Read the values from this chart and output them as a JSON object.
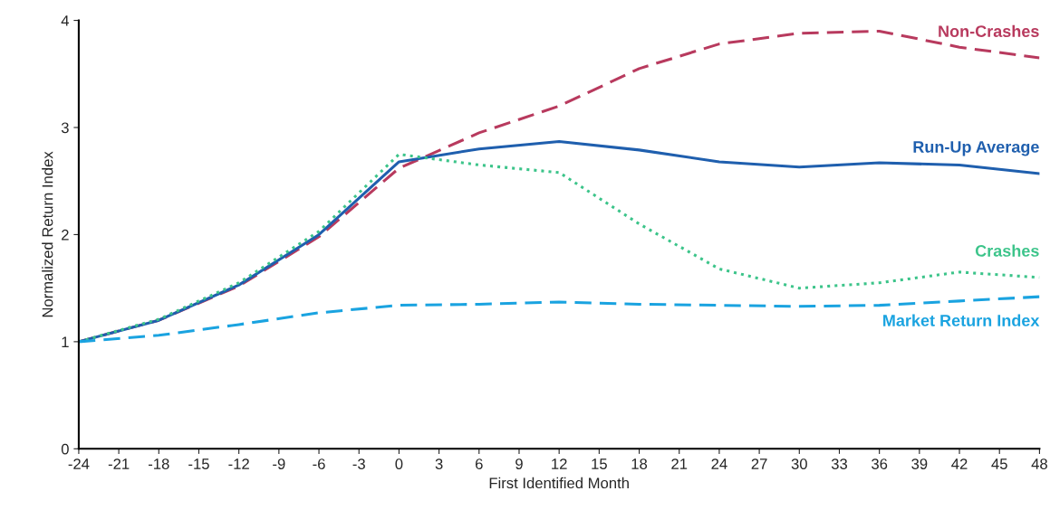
{
  "chart_data": {
    "type": "line",
    "xlabel": "First Identified Month",
    "ylabel": "Normalized Return Index",
    "x": [
      -24,
      -18,
      -12,
      -6,
      0,
      6,
      12,
      18,
      24,
      30,
      36,
      42,
      48
    ],
    "xlim": [
      -24,
      48
    ],
    "xticks": [
      -24,
      -21,
      -18,
      -15,
      -12,
      -9,
      -6,
      -3,
      0,
      3,
      6,
      9,
      12,
      15,
      18,
      21,
      24,
      27,
      30,
      33,
      36,
      39,
      42,
      45,
      48
    ],
    "ylim": [
      0,
      4
    ],
    "yticks": [
      0,
      1,
      2,
      3,
      4
    ],
    "grid": false,
    "legend": false,
    "marker": "none",
    "series": [
      {
        "name": "Non-Crashes",
        "color": "#b83a5e",
        "line_style": "dashed",
        "values": [
          1,
          1.2,
          1.52,
          1.98,
          2.62,
          2.95,
          3.2,
          3.55,
          3.78,
          3.88,
          3.9,
          3.75,
          3.65
        ]
      },
      {
        "name": "Run-Up Average",
        "color": "#1f5fae",
        "line_style": "solid",
        "values": [
          1,
          1.2,
          1.53,
          2.0,
          2.68,
          2.8,
          2.87,
          2.79,
          2.68,
          2.63,
          2.67,
          2.65,
          2.57
        ]
      },
      {
        "name": "Crashes",
        "color": "#3cc48a",
        "line_style": "dotted",
        "values": [
          1,
          1.21,
          1.55,
          2.03,
          2.75,
          2.65,
          2.58,
          2.1,
          1.68,
          1.5,
          1.55,
          1.65,
          1.6
        ]
      },
      {
        "name": "Market Return Index",
        "color": "#1aa3e0",
        "line_style": "dashed",
        "values": [
          1,
          1.06,
          1.16,
          1.27,
          1.34,
          1.35,
          1.37,
          1.35,
          1.34,
          1.33,
          1.34,
          1.38,
          1.42
        ]
      }
    ]
  }
}
